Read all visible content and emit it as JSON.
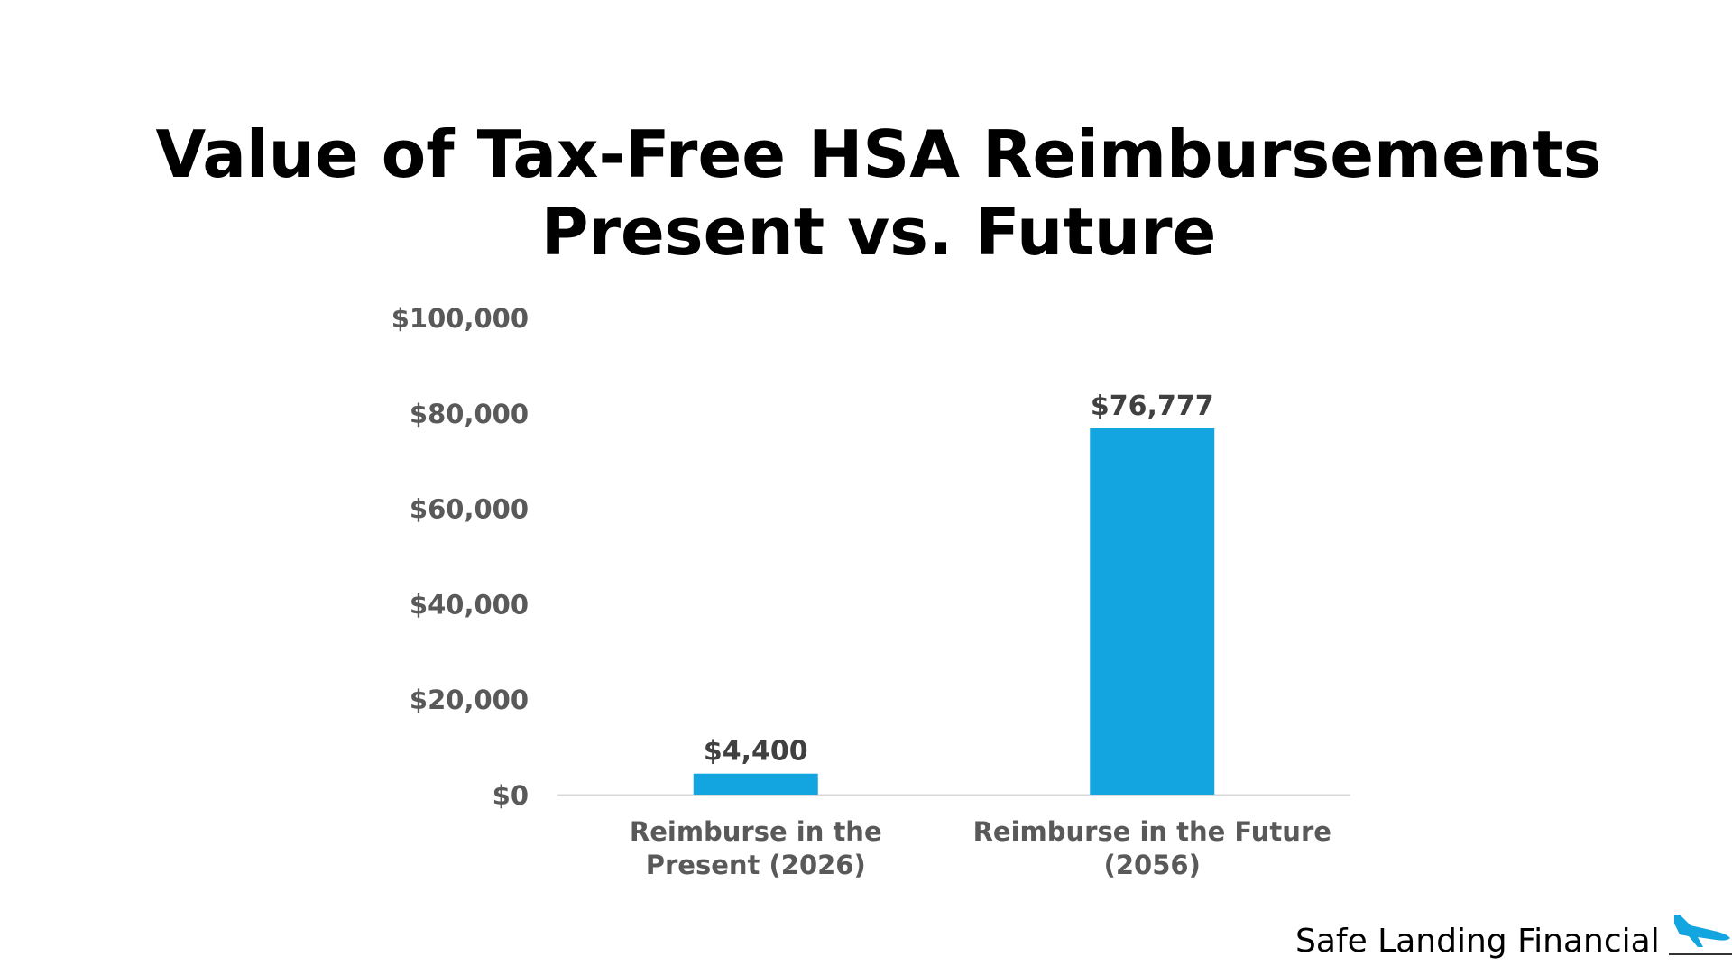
{
  "title_lines": [
    "Value of Tax-Free HSA Reimbursements",
    "Present vs. Future"
  ],
  "brand": "Safe Landing Financial",
  "icons": {
    "logo": "airplane-landing-icon"
  },
  "colors": {
    "bar": "#12A5DF",
    "axis_text": "#595959",
    "label_text": "#404040",
    "axis_line": "#D9D9D9",
    "logo": "#12A5DF"
  },
  "chart_data": {
    "type": "bar",
    "categories": [
      [
        "Reimburse in the",
        "Present (2026)"
      ],
      [
        "Reimburse in the Future",
        "(2056)"
      ]
    ],
    "values": [
      4400,
      76777
    ],
    "data_labels": [
      "$4,400",
      "$76,777"
    ],
    "y_ticks": [
      0,
      20000,
      40000,
      60000,
      80000,
      100000
    ],
    "y_tick_labels": [
      "$0",
      "$20,000",
      "$40,000",
      "$60,000",
      "$80,000",
      "$100,000"
    ],
    "ylim": [
      0,
      100000
    ],
    "grid": false,
    "legend": "none"
  }
}
